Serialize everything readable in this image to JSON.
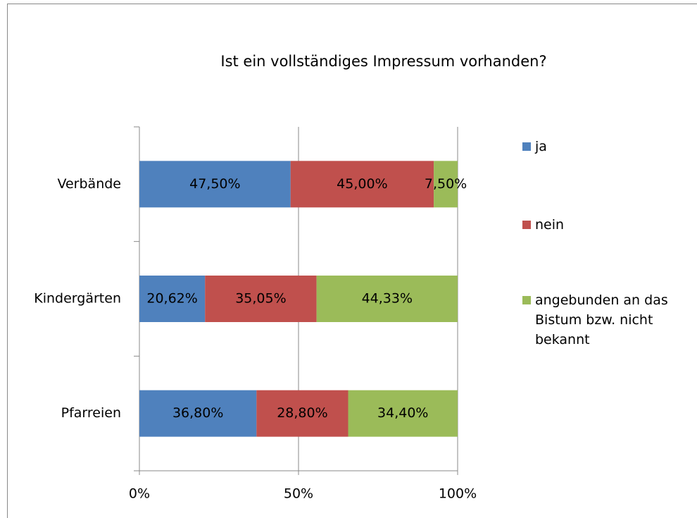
{
  "chart_data": {
    "type": "stacked_bar_horizontal",
    "title": "Ist ein vollständiges Impressum vorhanden?",
    "categories": [
      "Verbände",
      "Kindergärten",
      "Pfarreien"
    ],
    "series": [
      {
        "name": "ja",
        "color": "#4f81bd",
        "values": [
          47.5,
          20.62,
          36.8
        ],
        "value_labels": [
          "47,50%",
          "20,62%",
          "36,80%"
        ]
      },
      {
        "name": "nein",
        "color": "#c0504d",
        "values": [
          45,
          35.05,
          28.8
        ],
        "value_labels": [
          "45,00%",
          "35,05%",
          "28,80%"
        ]
      },
      {
        "name": "angebunden an das Bistum bzw. nicht bekannt",
        "color": "#9bbb59",
        "values": [
          7.5,
          44.33,
          34.4
        ],
        "value_labels": [
          "7,50%",
          "44,33%",
          "34,40%"
        ]
      }
    ],
    "xlim": [
      0,
      100
    ],
    "xticks": [
      {
        "value": 0,
        "label": "0%"
      },
      {
        "value": 50,
        "label": "50%"
      },
      {
        "value": 100,
        "label": "100%"
      }
    ],
    "grid": true,
    "legend": "right"
  }
}
